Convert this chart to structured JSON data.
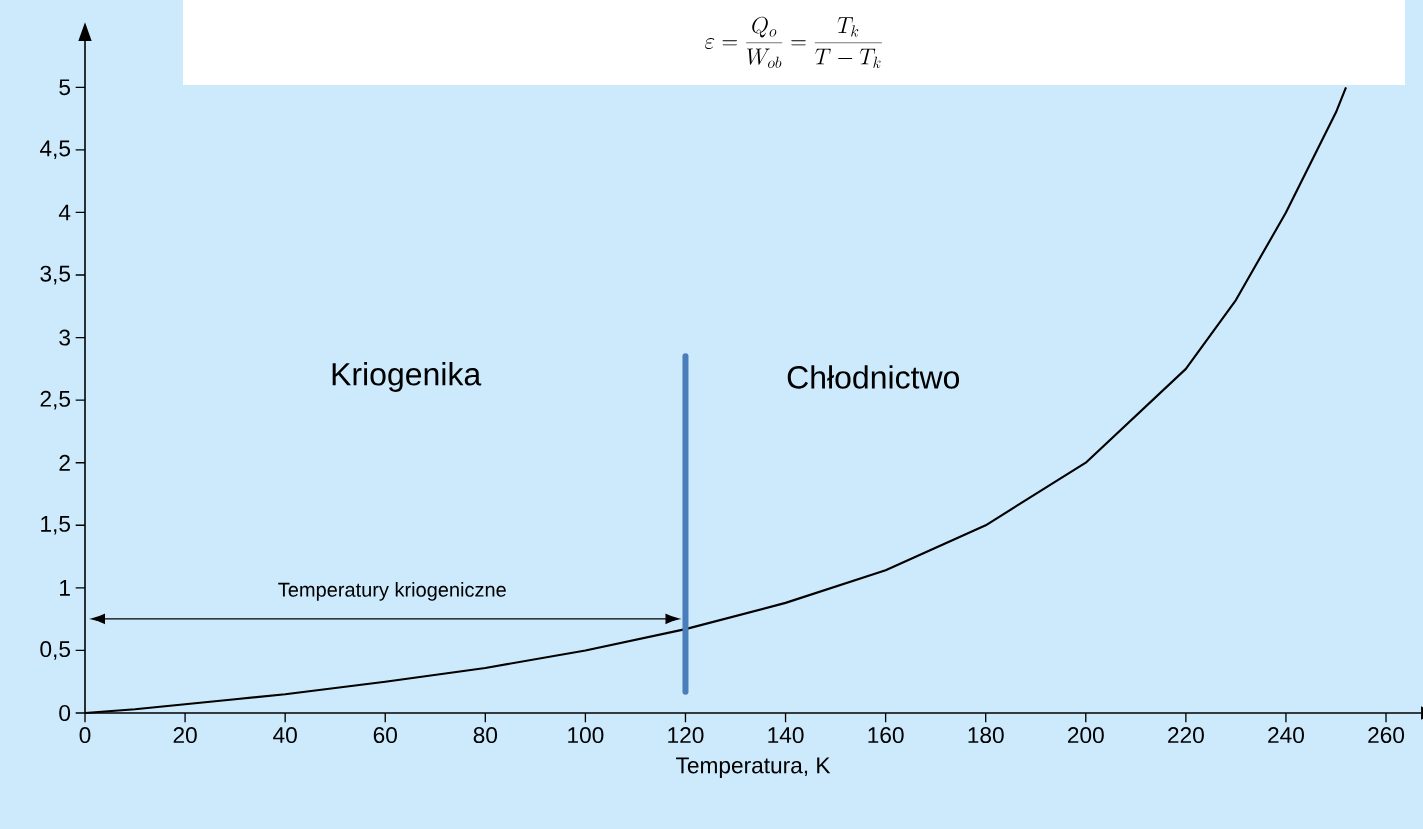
{
  "chart_data": {
    "type": "line",
    "title": "\\varepsilon = \\frac{Q_o}{W_{ob}} = \\frac{T_k}{T - T_k}",
    "xlabel": "Temperatura, K",
    "xlim": [
      0,
      267
    ],
    "ylim": [
      0,
      5.37
    ],
    "xticks": [
      0,
      20,
      40,
      60,
      80,
      100,
      120,
      140,
      160,
      180,
      200,
      220,
      240,
      260
    ],
    "yticks": [
      0,
      {
        "value": 0.5,
        "label": "0,5"
      },
      1,
      {
        "value": 1.5,
        "label": "1,5"
      },
      2,
      {
        "value": 2.5,
        "label": "2,5"
      },
      3,
      {
        "value": 3.5,
        "label": "3,5"
      },
      4,
      {
        "value": 4.5,
        "label": "4,5"
      },
      5
    ],
    "series": [
      {
        "color": "#000000",
        "x": [
          0,
          10,
          20,
          30,
          40,
          60,
          80,
          100,
          120,
          140,
          160,
          180,
          200,
          220,
          230,
          240,
          250,
          252
        ],
        "values": [
          0,
          0.03,
          0.07,
          0.11,
          0.15,
          0.25,
          0.36,
          0.5,
          0.67,
          0.88,
          1.14,
          1.5,
          2.0,
          2.75,
          3.3,
          4.0,
          4.8,
          5.0
        ]
      },
      {
        "color": "#4a7ebb",
        "x": [
          120,
          120
        ],
        "values": [
          0.17,
          2.85
        ]
      }
    ],
    "annotations": [
      "Kriogenika",
      "Chłodnictwo",
      "Temperatury kriogeniczne"
    ],
    "marker": "none",
    "line_style": "solid",
    "grid": false
  }
}
